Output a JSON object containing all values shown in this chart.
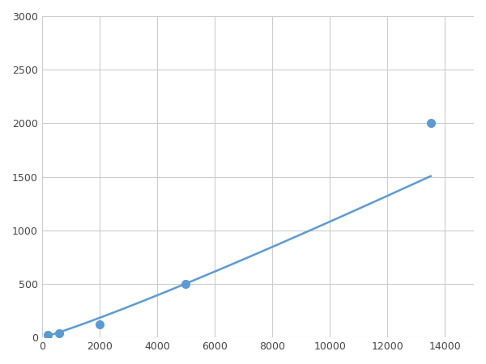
{
  "x_points": [
    200,
    600,
    2000,
    5000,
    13500
  ],
  "y_points": [
    20,
    40,
    120,
    500,
    2000
  ],
  "line_color": "#5b9bd5",
  "marker_color": "#5b9bd5",
  "marker_size": 7,
  "line_width": 1.8,
  "xlim": [
    0,
    15000
  ],
  "ylim": [
    0,
    3000
  ],
  "xticks": [
    0,
    2000,
    4000,
    6000,
    8000,
    10000,
    12000,
    14000
  ],
  "yticks": [
    0,
    500,
    1000,
    1500,
    2000,
    2500,
    3000
  ],
  "grid_color": "#cccccc",
  "background_color": "#ffffff",
  "fig_width": 6.0,
  "fig_height": 4.5,
  "dpi": 100
}
